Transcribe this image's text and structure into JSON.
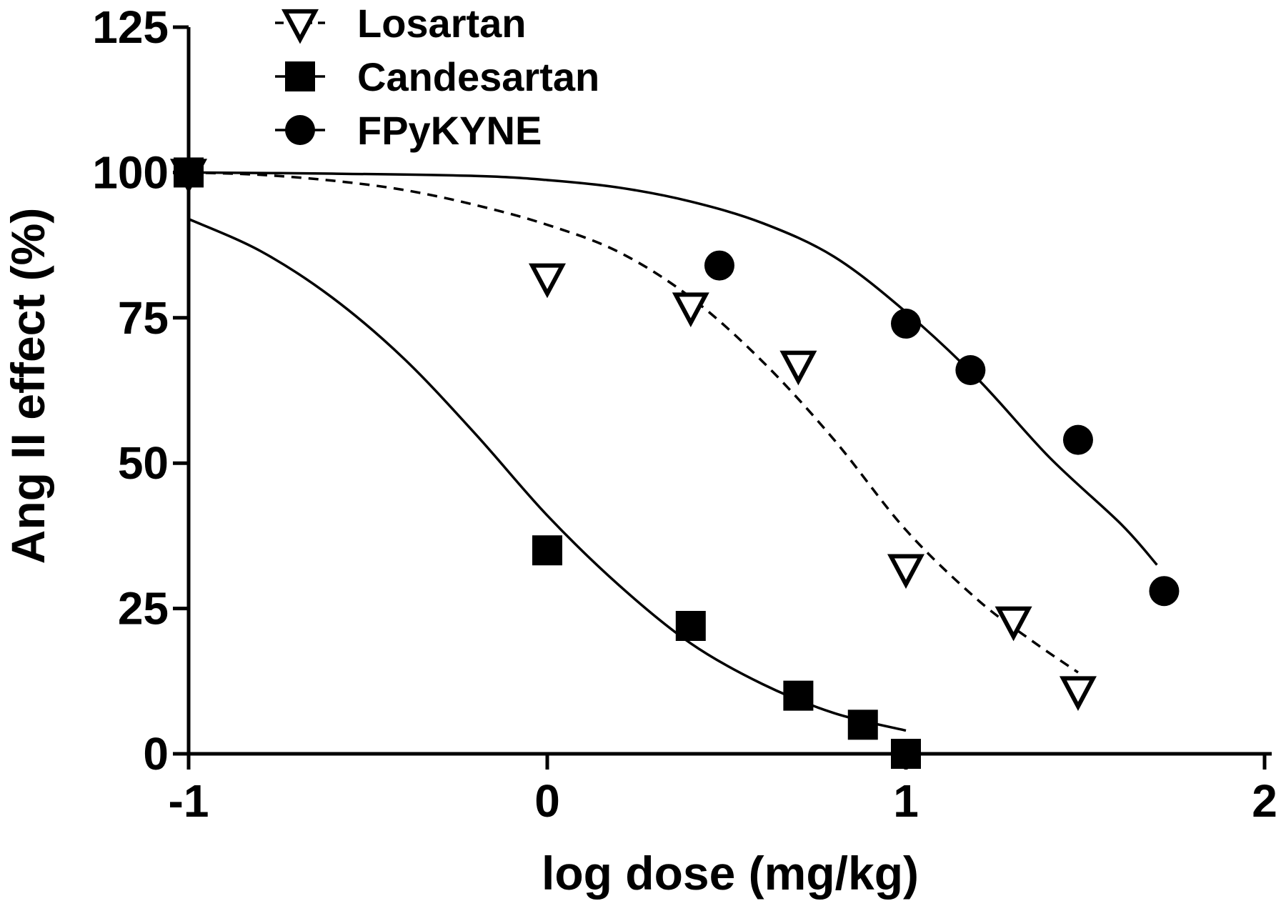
{
  "chart_data": {
    "type": "scatter",
    "xlabel": "log dose (mg/kg)",
    "ylabel": "Ang II effect (%)",
    "xlim": [
      -1,
      2
    ],
    "ylim": [
      0,
      125
    ],
    "x_ticks": [
      -1,
      0,
      1,
      2
    ],
    "x_tick_labels": [
      "-1",
      "0",
      "1",
      "2"
    ],
    "y_ticks": [
      0,
      25,
      50,
      75,
      100,
      125
    ],
    "y_tick_labels": [
      "0",
      "25",
      "50",
      "75",
      "100",
      "125"
    ],
    "legend_position": "top-left",
    "grid": false,
    "series": [
      {
        "name": "Losartan",
        "marker": "open-triangle-down",
        "line_style": "dashed",
        "color": "#000000",
        "points": [
          {
            "x": -1,
            "y": 100
          },
          {
            "x": 0,
            "y": 82
          },
          {
            "x": 0.4,
            "y": 77
          },
          {
            "x": 0.7,
            "y": 67
          },
          {
            "x": 1.0,
            "y": 32
          },
          {
            "x": 1.3,
            "y": 23
          },
          {
            "x": 1.48,
            "y": 11
          }
        ],
        "fit": [
          {
            "x": -1.0,
            "y": 100.0
          },
          {
            "x": -0.8,
            "y": 99.6
          },
          {
            "x": -0.6,
            "y": 98.6
          },
          {
            "x": -0.4,
            "y": 97.0
          },
          {
            "x": -0.2,
            "y": 94.4
          },
          {
            "x": 0.0,
            "y": 91.0
          },
          {
            "x": 0.2,
            "y": 86.3
          },
          {
            "x": 0.4,
            "y": 78.5
          },
          {
            "x": 0.6,
            "y": 67.5
          },
          {
            "x": 0.8,
            "y": 54.0
          },
          {
            "x": 1.0,
            "y": 38.5
          },
          {
            "x": 1.2,
            "y": 26.5
          },
          {
            "x": 1.35,
            "y": 19.5
          },
          {
            "x": 1.48,
            "y": 14.0
          }
        ]
      },
      {
        "name": "Candesartan",
        "marker": "filled-square",
        "line_style": "solid",
        "color": "#000000",
        "points": [
          {
            "x": -1,
            "y": 100
          },
          {
            "x": 0,
            "y": 35
          },
          {
            "x": 0.4,
            "y": 22
          },
          {
            "x": 0.7,
            "y": 10
          },
          {
            "x": 0.88,
            "y": 5
          },
          {
            "x": 1.0,
            "y": 0
          }
        ],
        "fit": [
          {
            "x": -1.0,
            "y": 92.0
          },
          {
            "x": -0.8,
            "y": 86.5
          },
          {
            "x": -0.6,
            "y": 78.5
          },
          {
            "x": -0.4,
            "y": 68.0
          },
          {
            "x": -0.2,
            "y": 55.0
          },
          {
            "x": 0.0,
            "y": 41.0
          },
          {
            "x": 0.2,
            "y": 29.0
          },
          {
            "x": 0.4,
            "y": 19.0
          },
          {
            "x": 0.6,
            "y": 12.0
          },
          {
            "x": 0.8,
            "y": 7.0
          },
          {
            "x": 1.0,
            "y": 4.0
          }
        ]
      },
      {
        "name": "FPyKYNE",
        "marker": "filled-circle",
        "line_style": "solid",
        "color": "#000000",
        "points": [
          {
            "x": -1,
            "y": 100
          },
          {
            "x": 0.48,
            "y": 84
          },
          {
            "x": 1.0,
            "y": 74
          },
          {
            "x": 1.18,
            "y": 66
          },
          {
            "x": 1.48,
            "y": 54
          },
          {
            "x": 1.72,
            "y": 28
          }
        ],
        "fit": [
          {
            "x": -1.0,
            "y": 100.0
          },
          {
            "x": -0.6,
            "y": 99.8
          },
          {
            "x": -0.2,
            "y": 99.4
          },
          {
            "x": 0.0,
            "y": 98.7
          },
          {
            "x": 0.2,
            "y": 97.4
          },
          {
            "x": 0.4,
            "y": 95.0
          },
          {
            "x": 0.6,
            "y": 91.3
          },
          {
            "x": 0.8,
            "y": 85.5
          },
          {
            "x": 1.0,
            "y": 76.0
          },
          {
            "x": 1.2,
            "y": 64.5
          },
          {
            "x": 1.4,
            "y": 51.0
          },
          {
            "x": 1.6,
            "y": 39.5
          },
          {
            "x": 1.7,
            "y": 32.5
          }
        ]
      }
    ]
  }
}
